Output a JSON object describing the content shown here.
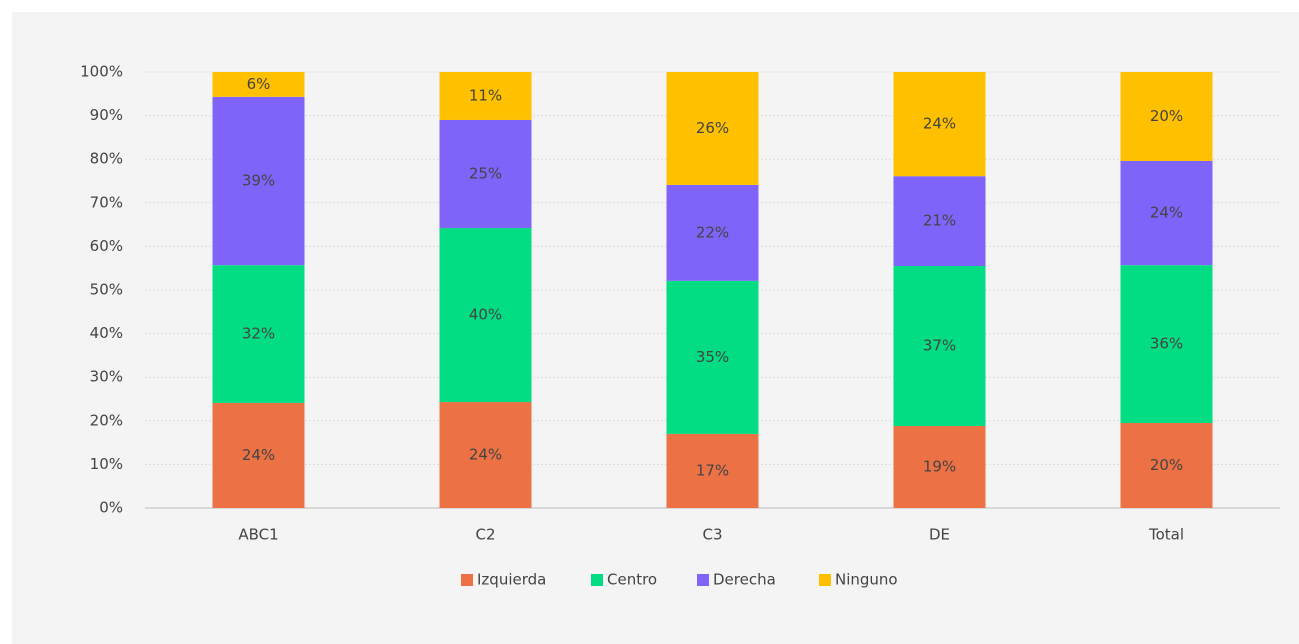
{
  "chart_data": {
    "type": "stacked_bar",
    "categories": [
      "ABC1",
      "C2",
      "C3",
      "DE",
      "Total"
    ],
    "series": [
      {
        "name": "Izquierda",
        "color": "#ec7246",
        "values": [
          24.1,
          24.3,
          17.0,
          18.8,
          19.5
        ],
        "value_labels": [
          "24%",
          "24%",
          "17%",
          "19%",
          "20%"
        ]
      },
      {
        "name": "Centro",
        "color": "#02dd83",
        "values": [
          31.6,
          39.9,
          35.1,
          36.7,
          36.2
        ],
        "value_labels": [
          "32%",
          "40%",
          "35%",
          "37%",
          "36%"
        ]
      },
      {
        "name": "Derecha",
        "color": "#8064fa",
        "values": [
          38.6,
          24.8,
          22.0,
          20.6,
          23.9
        ],
        "value_labels": [
          "39%",
          "25%",
          "22%",
          "21%",
          "24%"
        ]
      },
      {
        "name": "Ninguno",
        "color": "#ffc000",
        "values": [
          5.7,
          11.0,
          25.9,
          23.9,
          20.4
        ],
        "value_labels": [
          "6%",
          "11%",
          "26%",
          "24%",
          "20%"
        ]
      }
    ],
    "ylim": [
      0,
      100
    ],
    "yticks": [
      {
        "value": 0,
        "label": "0%"
      },
      {
        "value": 10,
        "label": "10%"
      },
      {
        "value": 20,
        "label": "20%"
      },
      {
        "value": 30,
        "label": "30%"
      },
      {
        "value": 40,
        "label": "40%"
      },
      {
        "value": 50,
        "label": "50%"
      },
      {
        "value": 60,
        "label": "60%"
      },
      {
        "value": 70,
        "label": "70%"
      },
      {
        "value": 80,
        "label": "80%"
      },
      {
        "value": 90,
        "label": "90%"
      },
      {
        "value": 100,
        "label": "100%"
      }
    ],
    "grid": true,
    "legend": "bottom"
  }
}
